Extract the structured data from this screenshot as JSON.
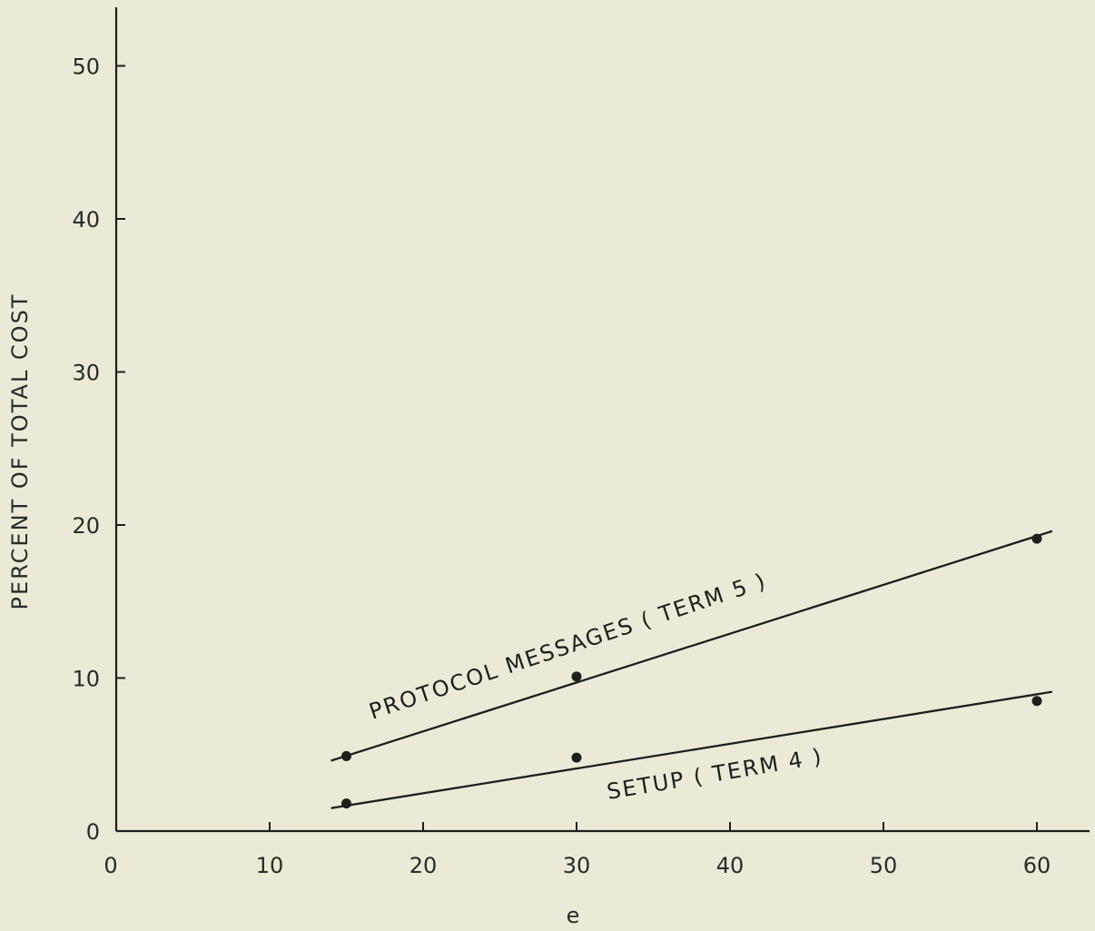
{
  "chart_data": {
    "type": "line",
    "xlabel": "e",
    "ylabel": "PERCENT OF TOTAL COST",
    "xlim": [
      0,
      63
    ],
    "ylim": [
      0,
      54
    ],
    "x_ticks": [
      0,
      10,
      20,
      30,
      40,
      50,
      60
    ],
    "y_ticks": [
      0,
      10,
      20,
      30,
      40,
      50
    ],
    "grid": false,
    "series": [
      {
        "name": "PROTOCOL MESSAGES ( TERM 5 )",
        "points": [
          [
            15,
            4.9
          ],
          [
            30,
            10.1
          ],
          [
            60,
            19.1
          ]
        ],
        "fit_line": [
          [
            14,
            4.6
          ],
          [
            61,
            19.6
          ]
        ]
      },
      {
        "name": "SETUP ( TERM 4 )",
        "points": [
          [
            15,
            1.8
          ],
          [
            30,
            4.8
          ],
          [
            60,
            8.5
          ]
        ],
        "fit_line": [
          [
            14,
            1.5
          ],
          [
            61,
            9.1
          ]
        ]
      }
    ],
    "colors": {
      "ink": "#1e1e1e",
      "background": "#ecead7"
    }
  }
}
